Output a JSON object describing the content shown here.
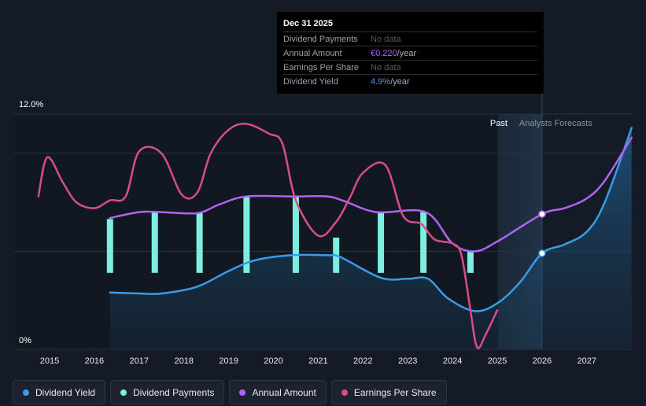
{
  "tooltip": {
    "date": "Dec 31 2025",
    "rows": {
      "dividend_payments": {
        "label": "Dividend Payments",
        "value": "No data"
      },
      "annual_amount": {
        "label": "Annual Amount",
        "value": "€0.220",
        "unit": "/year"
      },
      "eps": {
        "label": "Earnings Per Share",
        "value": "No data"
      },
      "dividend_yield": {
        "label": "Dividend Yield",
        "value": "4.9%",
        "unit": "/year"
      }
    }
  },
  "legend": {
    "dividend_yield": "Dividend Yield",
    "dividend_payments": "Dividend Payments",
    "annual_amount": "Annual Amount",
    "eps": "Earnings Per Share"
  },
  "colors": {
    "background": "#151b26",
    "dividend_yield": "#3a9be8",
    "dividend_payments": "#7deee0",
    "annual_amount": "#b262f5",
    "eps": "#d94c8a"
  },
  "chart_data": {
    "type": "line",
    "title": "",
    "xlabel": "",
    "ylabel": "",
    "y_tick_labels": [
      "12.0%",
      "0%"
    ],
    "ylim": [
      0,
      12
    ],
    "xlim": [
      2014.7,
      2028
    ],
    "x_ticks": [
      2015,
      2016,
      2017,
      2018,
      2019,
      2020,
      2021,
      2022,
      2023,
      2024,
      2025,
      2026,
      2027
    ],
    "past_label": "Past",
    "forecast_label": "Analysts Forecasts",
    "forecast_start": 2025.4,
    "past_end": 2026.0,
    "series": [
      {
        "name": "Dividend Yield",
        "key": "dividend_yield",
        "unit": "%",
        "points": [
          [
            2016.35,
            2.9
          ],
          [
            2017.0,
            2.85
          ],
          [
            2017.5,
            2.85
          ],
          [
            2018.3,
            3.2
          ],
          [
            2019.0,
            4.0
          ],
          [
            2019.6,
            4.55
          ],
          [
            2020.4,
            4.8
          ],
          [
            2021.2,
            4.8
          ],
          [
            2021.5,
            4.7
          ],
          [
            2022.4,
            3.65
          ],
          [
            2023.0,
            3.6
          ],
          [
            2023.45,
            3.6
          ],
          [
            2023.9,
            2.6
          ],
          [
            2024.5,
            1.95
          ],
          [
            2025.0,
            2.35
          ],
          [
            2025.5,
            3.4
          ],
          [
            2026.0,
            4.9
          ],
          [
            2026.5,
            5.35
          ],
          [
            2027.0,
            6.0
          ],
          [
            2027.4,
            7.5
          ],
          [
            2028.0,
            11.3
          ]
        ],
        "forecast_from": 2025.0
      },
      {
        "name": "Annual Amount",
        "key": "annual_amount",
        "unit": "€",
        "points": [
          [
            2016.35,
            6.7
          ],
          [
            2017.0,
            7.0
          ],
          [
            2017.5,
            7.0
          ],
          [
            2018.3,
            6.95
          ],
          [
            2018.8,
            7.4
          ],
          [
            2019.4,
            7.8
          ],
          [
            2020.5,
            7.8
          ],
          [
            2021.2,
            7.8
          ],
          [
            2021.6,
            7.55
          ],
          [
            2022.3,
            7.0
          ],
          [
            2023.4,
            7.0
          ],
          [
            2024.0,
            5.4
          ],
          [
            2024.5,
            5.0
          ],
          [
            2025.0,
            5.5
          ],
          [
            2026.0,
            6.9
          ],
          [
            2026.5,
            7.2
          ],
          [
            2027.0,
            7.7
          ],
          [
            2027.4,
            8.6
          ],
          [
            2028.0,
            10.8
          ]
        ],
        "forecast_from": 2025.0
      },
      {
        "name": "Earnings Per Share",
        "key": "eps",
        "unit": "€",
        "points": [
          [
            2014.75,
            7.8
          ],
          [
            2014.95,
            9.8
          ],
          [
            2015.3,
            8.5
          ],
          [
            2015.6,
            7.5
          ],
          [
            2016.0,
            7.2
          ],
          [
            2016.35,
            7.6
          ],
          [
            2016.7,
            7.8
          ],
          [
            2017.0,
            10.1
          ],
          [
            2017.5,
            10.0
          ],
          [
            2017.95,
            7.9
          ],
          [
            2018.3,
            8.0
          ],
          [
            2018.6,
            10.0
          ],
          [
            2019.0,
            11.2
          ],
          [
            2019.4,
            11.5
          ],
          [
            2019.9,
            11.0
          ],
          [
            2020.2,
            10.5
          ],
          [
            2020.5,
            7.6
          ],
          [
            2021.0,
            5.8
          ],
          [
            2021.4,
            6.5
          ],
          [
            2021.7,
            7.7
          ],
          [
            2022.0,
            9.0
          ],
          [
            2022.5,
            9.4
          ],
          [
            2022.9,
            6.8
          ],
          [
            2023.3,
            6.4
          ],
          [
            2023.6,
            5.6
          ],
          [
            2024.0,
            5.4
          ],
          [
            2024.2,
            4.8
          ],
          [
            2024.4,
            2.0
          ],
          [
            2024.55,
            0.1
          ],
          [
            2024.75,
            0.8
          ],
          [
            2025.0,
            2.0
          ]
        ]
      }
    ],
    "bars": {
      "name": "Dividend Payments",
      "key": "dividend_payments",
      "items": [
        {
          "x": 2016.35,
          "top": 6.65,
          "bottom": 3.9
        },
        {
          "x": 2017.35,
          "top": 7.05,
          "bottom": 3.9
        },
        {
          "x": 2018.35,
          "top": 6.95,
          "bottom": 3.9
        },
        {
          "x": 2019.4,
          "top": 7.8,
          "bottom": 3.9
        },
        {
          "x": 2020.5,
          "top": 7.8,
          "bottom": 3.9
        },
        {
          "x": 2021.4,
          "top": 5.7,
          "bottom": 3.9
        },
        {
          "x": 2022.4,
          "top": 7.0,
          "bottom": 3.9
        },
        {
          "x": 2023.35,
          "top": 7.0,
          "bottom": 3.9
        },
        {
          "x": 2024.4,
          "top": 5.0,
          "bottom": 3.9
        }
      ]
    },
    "markers": [
      {
        "series": "annual_amount",
        "x": 2026.0,
        "y": 6.9
      },
      {
        "series": "dividend_yield",
        "x": 2026.0,
        "y": 4.9
      }
    ]
  }
}
